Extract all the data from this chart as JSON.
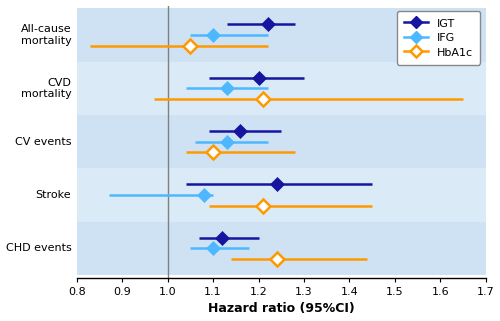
{
  "categories": [
    "All-cause\nmortality",
    "CVD\nmortality",
    "CV events",
    "Stroke",
    "CHD events"
  ],
  "IGT": {
    "est": [
      1.22,
      1.2,
      1.16,
      1.24,
      1.12
    ],
    "lo": [
      1.13,
      1.09,
      1.09,
      1.04,
      1.07
    ],
    "hi": [
      1.28,
      1.3,
      1.25,
      1.45,
      1.2
    ]
  },
  "IFG": {
    "est": [
      1.1,
      1.13,
      1.13,
      1.08,
      1.1
    ],
    "lo": [
      1.05,
      1.04,
      1.06,
      0.87,
      1.05
    ],
    "hi": [
      1.22,
      1.22,
      1.22,
      1.1,
      1.18
    ]
  },
  "HbA1c": {
    "est": [
      1.05,
      1.21,
      1.1,
      1.21,
      1.24
    ],
    "lo": [
      0.83,
      0.97,
      1.04,
      1.09,
      1.14
    ],
    "hi": [
      1.22,
      1.65,
      1.28,
      1.45,
      1.44
    ]
  },
  "colors": {
    "IGT": "#1515a0",
    "IFG": "#4db8ff",
    "HbA1c": "#ff9900"
  },
  "xlim": [
    0.8,
    1.7
  ],
  "xticks": [
    0.8,
    0.9,
    1.0,
    1.1,
    1.2,
    1.3,
    1.4,
    1.5,
    1.6,
    1.7
  ],
  "xtick_labels": [
    "0.8",
    "0.9",
    "1.0",
    "1.1",
    "1.2",
    "1.3",
    "1.4",
    "1.5",
    "1.6",
    "1.7"
  ],
  "xlabel": "Hazard ratio (95%CI)",
  "bg_colors": [
    "#cfe2f3",
    "#daeaf6",
    "#cfe2f3",
    "#daeaf6",
    "#cfe2f3"
  ],
  "vline_x": 1.0,
  "y_offsets": {
    "IGT": 0.2,
    "IFG": 0.0,
    "HbA1c": -0.2
  },
  "marker_size": 7,
  "linewidth": 1.8
}
